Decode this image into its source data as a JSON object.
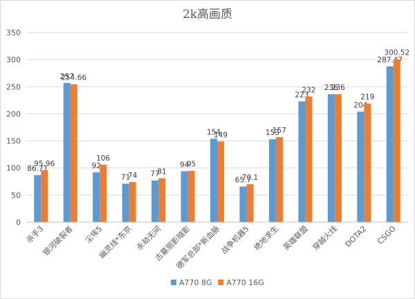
{
  "chart_data": {
    "type": "bar",
    "title": "2k高画质",
    "xlabel": "",
    "ylabel": "",
    "ylim": [
      0,
      350
    ],
    "yticks": [
      0,
      50,
      100,
      150,
      200,
      250,
      300,
      350
    ],
    "grid": true,
    "legend_position": "bottom",
    "categories": [
      "杀手3",
      "银河破裂者",
      "尘埃5",
      "幽灵线*东京",
      "永劫无间",
      "古墓丽影暗影",
      "德军总部*新血脉",
      "战争机器5",
      "绝地求生",
      "英雄联盟",
      "穿越火线",
      "DOTA2",
      "CSGO"
    ],
    "series": [
      {
        "name": "A770 8G",
        "color": "#5b9bd5",
        "values": [
          86.71,
          257,
          92,
          71,
          77,
          94,
          154,
          65.7,
          153,
          223,
          236,
          204,
          287.47
        ],
        "labels": [
          "86.71",
          "257",
          "92",
          "71",
          "77",
          "94",
          "154",
          "65.7",
          "153",
          "223",
          "236",
          "204",
          "287.47"
        ]
      },
      {
        "name": "A770 16G",
        "color": "#ed7d31",
        "values": [
          95.96,
          254.66,
          106,
          74,
          81,
          95,
          149,
          70.1,
          157,
          232,
          236,
          219,
          300.52
        ],
        "labels": [
          "95.96",
          "254.66",
          "106",
          "74",
          "81",
          "95",
          "149",
          "70.1",
          "157",
          "232",
          "236",
          "219",
          "300.52"
        ]
      }
    ]
  }
}
